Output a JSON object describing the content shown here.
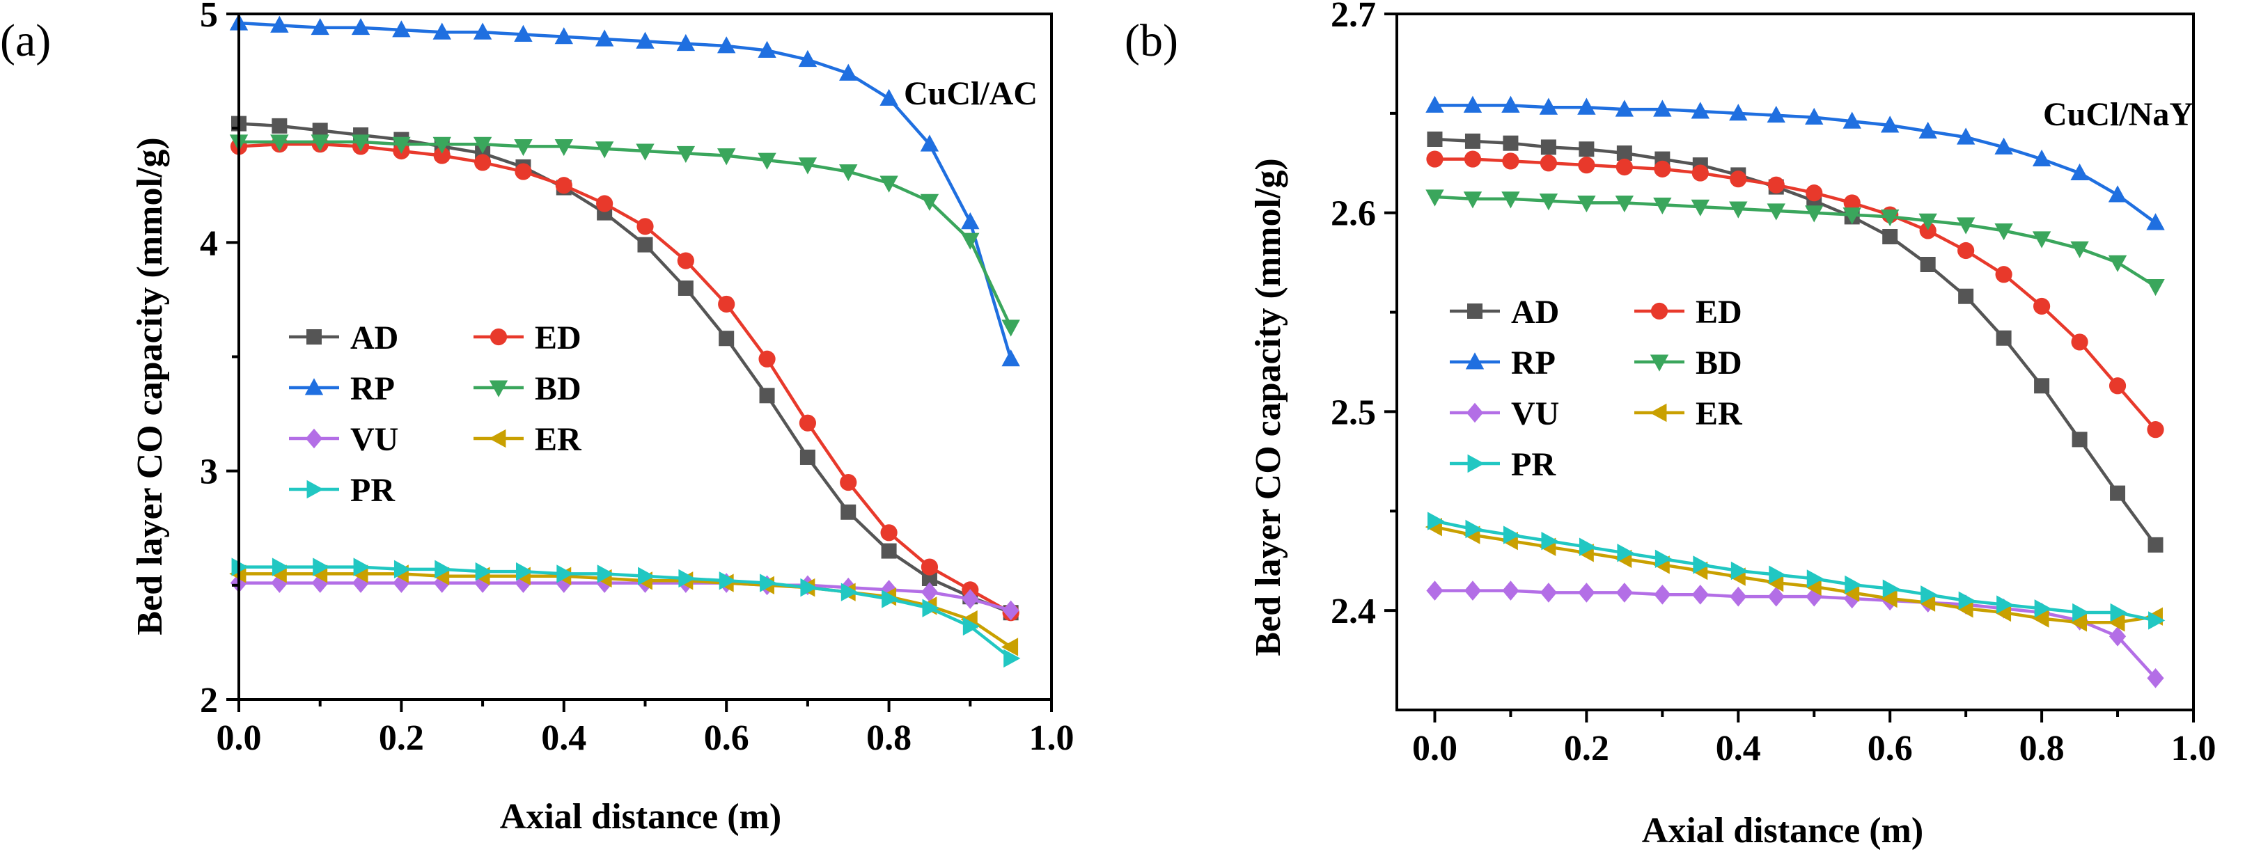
{
  "figure": {
    "panels": [
      "(a)",
      "(b)"
    ]
  },
  "chart_data": [
    {
      "type": "line",
      "panel_label": "(a)",
      "annotation": "CuCl/AC",
      "xlabel": "Axial distance (m)",
      "ylabel": "Bed layer CO capacity (mmol/g)",
      "xlim": [
        0,
        1.0
      ],
      "ylim": [
        2,
        5.0
      ],
      "xticks": [
        0,
        0.2,
        0.4,
        0.6,
        0.8,
        1.0
      ],
      "xtick_labels": [
        "0.0",
        "0.2",
        "0.4",
        "0.6",
        "0.8",
        "1.0"
      ],
      "yticks": [
        2,
        3,
        4,
        5
      ],
      "ytick_labels": [
        "2",
        "3",
        "4",
        "5"
      ],
      "legend_position": "center-left",
      "x": [
        0,
        0.05,
        0.1,
        0.15,
        0.2,
        0.25,
        0.3,
        0.35,
        0.4,
        0.45,
        0.5,
        0.55,
        0.6,
        0.65,
        0.7,
        0.75,
        0.8,
        0.85,
        0.9,
        0.95
      ],
      "series": [
        {
          "name": "AD",
          "color": "#555555",
          "marker": "square",
          "values": [
            4.52,
            4.51,
            4.49,
            4.47,
            4.45,
            4.42,
            4.39,
            4.33,
            4.24,
            4.13,
            3.99,
            3.8,
            3.58,
            3.33,
            3.06,
            2.82,
            2.65,
            2.53,
            2.45,
            2.38
          ]
        },
        {
          "name": "ED",
          "color": "#e8392b",
          "marker": "circle",
          "values": [
            4.42,
            4.43,
            4.43,
            4.42,
            4.4,
            4.38,
            4.35,
            4.31,
            4.25,
            4.17,
            4.07,
            3.92,
            3.73,
            3.49,
            3.21,
            2.95,
            2.73,
            2.58,
            2.48,
            2.38
          ]
        },
        {
          "name": "RP",
          "color": "#1f6fe0",
          "marker": "triangle-up",
          "values": [
            4.96,
            4.95,
            4.94,
            4.94,
            4.93,
            4.92,
            4.92,
            4.91,
            4.9,
            4.89,
            4.88,
            4.87,
            4.86,
            4.84,
            4.8,
            4.74,
            4.63,
            4.43,
            4.09,
            3.49
          ]
        },
        {
          "name": "BD",
          "color": "#3aa65c",
          "marker": "triangle-down",
          "values": [
            4.44,
            4.44,
            4.44,
            4.44,
            4.43,
            4.43,
            4.43,
            4.42,
            4.42,
            4.41,
            4.4,
            4.39,
            4.38,
            4.36,
            4.34,
            4.31,
            4.26,
            4.18,
            4.01,
            3.63
          ]
        },
        {
          "name": "VU",
          "color": "#b36ee6",
          "marker": "diamond",
          "values": [
            2.51,
            2.51,
            2.51,
            2.51,
            2.51,
            2.51,
            2.51,
            2.51,
            2.51,
            2.51,
            2.51,
            2.51,
            2.51,
            2.5,
            2.5,
            2.49,
            2.48,
            2.47,
            2.44,
            2.39
          ]
        },
        {
          "name": "ER",
          "color": "#c9a000",
          "marker": "triangle-left",
          "values": [
            2.55,
            2.55,
            2.55,
            2.55,
            2.55,
            2.54,
            2.54,
            2.54,
            2.54,
            2.53,
            2.52,
            2.52,
            2.51,
            2.5,
            2.49,
            2.47,
            2.45,
            2.41,
            2.35,
            2.23
          ]
        },
        {
          "name": "PR",
          "color": "#21c7c2",
          "marker": "triangle-right",
          "values": [
            2.58,
            2.58,
            2.58,
            2.58,
            2.57,
            2.57,
            2.56,
            2.56,
            2.55,
            2.55,
            2.54,
            2.53,
            2.52,
            2.51,
            2.49,
            2.47,
            2.44,
            2.4,
            2.32,
            2.18
          ]
        }
      ]
    },
    {
      "type": "line",
      "panel_label": "(b)",
      "annotation": "CuCl/NaY",
      "xlabel": "Axial distance (m)",
      "ylabel": "Bed layer CO capacity (mmol/g)",
      "xlim": [
        -0.05,
        1.0
      ],
      "ylim": [
        2.35,
        2.7
      ],
      "xticks": [
        0,
        0.2,
        0.4,
        0.6,
        0.8,
        1.0
      ],
      "xtick_labels": [
        "0.0",
        "0.2",
        "0.4",
        "0.6",
        "0.8",
        "1.0"
      ],
      "yticks": [
        2.4,
        2.5,
        2.6,
        2.7
      ],
      "ytick_labels": [
        "2.4",
        "2.5",
        "2.6",
        "2.7"
      ],
      "legend_position": "center-left",
      "x": [
        0,
        0.05,
        0.1,
        0.15,
        0.2,
        0.25,
        0.3,
        0.35,
        0.4,
        0.45,
        0.5,
        0.55,
        0.6,
        0.65,
        0.7,
        0.75,
        0.8,
        0.85,
        0.9,
        0.95
      ],
      "series": [
        {
          "name": "AD",
          "color": "#555555",
          "marker": "square",
          "values": [
            2.637,
            2.636,
            2.635,
            2.633,
            2.632,
            2.63,
            2.627,
            2.624,
            2.619,
            2.613,
            2.606,
            2.598,
            2.588,
            2.574,
            2.558,
            2.537,
            2.513,
            2.486,
            2.459,
            2.433
          ]
        },
        {
          "name": "ED",
          "color": "#e8392b",
          "marker": "circle",
          "values": [
            2.627,
            2.627,
            2.626,
            2.625,
            2.624,
            2.623,
            2.622,
            2.62,
            2.617,
            2.614,
            2.61,
            2.605,
            2.599,
            2.591,
            2.581,
            2.569,
            2.553,
            2.535,
            2.513,
            2.491
          ]
        },
        {
          "name": "RP",
          "color": "#1f6fe0",
          "marker": "triangle-up",
          "values": [
            2.654,
            2.654,
            2.654,
            2.653,
            2.653,
            2.652,
            2.652,
            2.651,
            2.65,
            2.649,
            2.648,
            2.646,
            2.644,
            2.641,
            2.638,
            2.633,
            2.627,
            2.62,
            2.609,
            2.595
          ]
        },
        {
          "name": "BD",
          "color": "#3aa65c",
          "marker": "triangle-down",
          "values": [
            2.608,
            2.607,
            2.607,
            2.606,
            2.605,
            2.605,
            2.604,
            2.603,
            2.602,
            2.601,
            2.6,
            2.599,
            2.598,
            2.596,
            2.594,
            2.591,
            2.587,
            2.582,
            2.575,
            2.563
          ]
        },
        {
          "name": "VU",
          "color": "#b36ee6",
          "marker": "diamond",
          "values": [
            2.41,
            2.41,
            2.41,
            2.409,
            2.409,
            2.409,
            2.408,
            2.408,
            2.407,
            2.407,
            2.407,
            2.406,
            2.405,
            2.404,
            2.403,
            2.401,
            2.399,
            2.395,
            2.387,
            2.366
          ]
        },
        {
          "name": "ER",
          "color": "#c9a000",
          "marker": "triangle-left",
          "values": [
            2.442,
            2.438,
            2.435,
            2.432,
            2.429,
            2.426,
            2.423,
            2.42,
            2.417,
            2.414,
            2.412,
            2.409,
            2.406,
            2.404,
            2.401,
            2.399,
            2.396,
            2.394,
            2.394,
            2.397
          ]
        },
        {
          "name": "PR",
          "color": "#21c7c2",
          "marker": "triangle-right",
          "values": [
            2.445,
            2.441,
            2.438,
            2.435,
            2.432,
            2.429,
            2.426,
            2.423,
            2.42,
            2.418,
            2.416,
            2.413,
            2.411,
            2.408,
            2.405,
            2.403,
            2.401,
            2.399,
            2.399,
            2.395
          ]
        }
      ]
    }
  ]
}
